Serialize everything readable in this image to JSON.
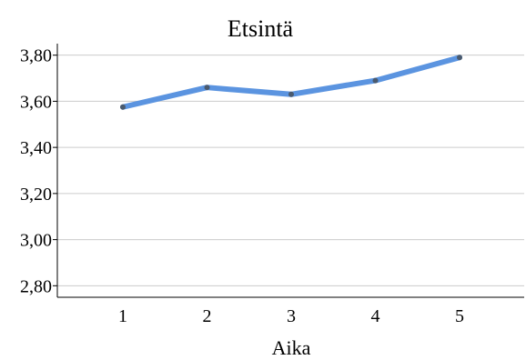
{
  "chart_data": {
    "type": "line",
    "title": "Etsintä",
    "xlabel": "Aika",
    "ylabel": "",
    "categories": [
      "1",
      "2",
      "3",
      "4",
      "5"
    ],
    "series": [
      {
        "values": [
          3.575,
          3.66,
          3.63,
          3.69,
          3.79
        ]
      }
    ],
    "ylim": [
      2.75,
      3.85
    ],
    "yticks": [
      3.8,
      3.6,
      3.4,
      3.2,
      3.0,
      2.8
    ],
    "ytick_labels": [
      "3,80",
      "3,60",
      "3,40",
      "3,20",
      "3,00",
      "2,80"
    ],
    "grid": true,
    "line_color": "#5b94e0",
    "marker_color": "#4a5a6e",
    "gridline_color": "#cccccc"
  }
}
